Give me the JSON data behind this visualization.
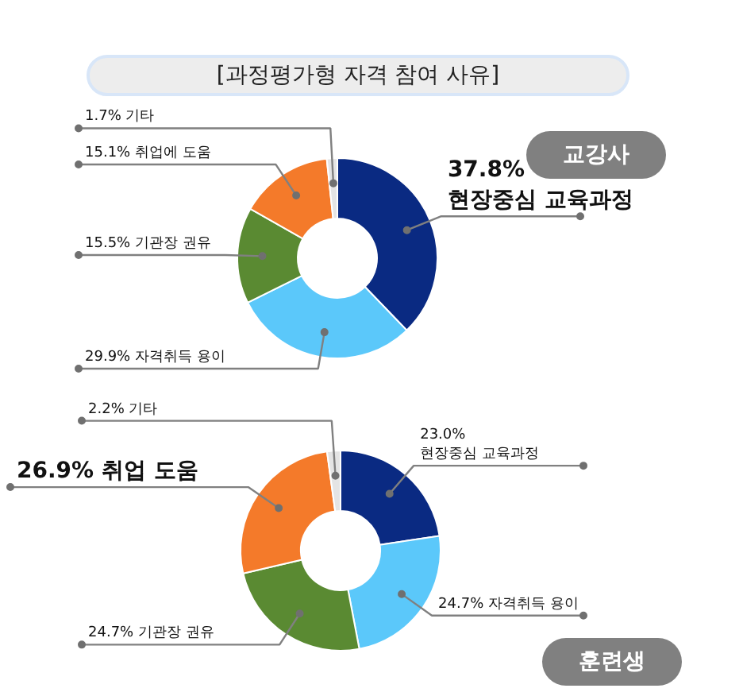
{
  "chart_data": [
    {
      "type": "donut",
      "title": "[과정평가형 자격 참여 사유]",
      "subtitle": "교강사",
      "categories": [
        "현장중심 교육과정",
        "자격취득 용이",
        "기관장 권유",
        "취업에 도움",
        "기타"
      ],
      "values": [
        37.8,
        29.9,
        15.5,
        15.1,
        1.7
      ],
      "value_labels": [
        "37.8%",
        "29.9%",
        "15.5%",
        "15.1%",
        "1.7%"
      ],
      "colors": [
        "#0a2a82",
        "#5bc8fa",
        "#5a8a32",
        "#f47a2a",
        "#e4e4e4"
      ]
    },
    {
      "type": "donut",
      "subtitle": "훈련생",
      "categories": [
        "현장중심 교육과정",
        "자격취득 용이",
        "기관장 권유",
        "취업 도움",
        "기타"
      ],
      "values": [
        23.0,
        24.7,
        24.7,
        26.9,
        2.2
      ],
      "value_labels": [
        "23.0%",
        "24.7%",
        "24.7%",
        "26.9%",
        "2.2%"
      ],
      "colors": [
        "#0a2a82",
        "#5bc8fa",
        "#5a8a32",
        "#f47a2a",
        "#e4e4e4"
      ]
    }
  ]
}
